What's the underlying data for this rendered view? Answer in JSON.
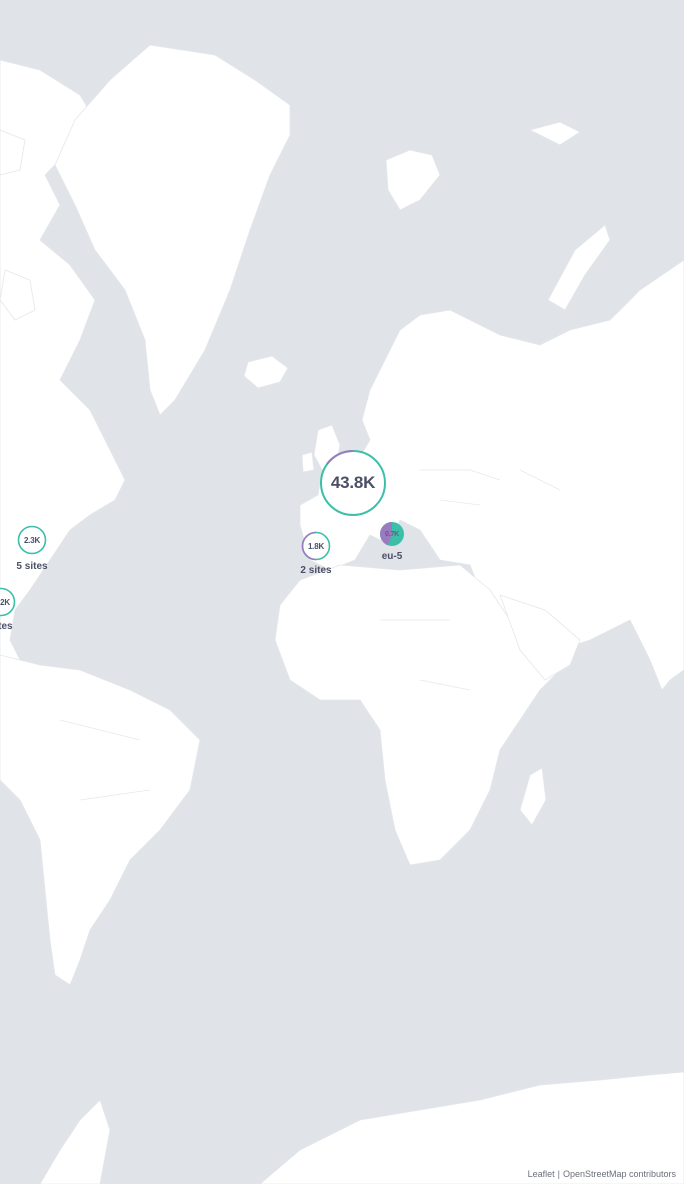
{
  "map": {
    "colors": {
      "ocean": "#e0e3e8",
      "land": "#ffffff",
      "ring_primary": "#3bbfa8",
      "ring_secondary": "#9a7bbf",
      "label_text": "#4a4f66"
    }
  },
  "clusters": {
    "europe_main": {
      "value": "43.8K",
      "primary_share": 0.8
    },
    "iberia": {
      "value": "1.8K",
      "label": "2 sites",
      "primary_share": 0.5
    },
    "us_east": {
      "value": "2.3K",
      "label": "5 sites",
      "primary_share": 0.95
    },
    "us_south": {
      "value": "2K",
      "label": "ites",
      "primary_share": 0.9
    },
    "italy": {
      "value": "0.7K",
      "label": "eu-5",
      "primary_share": 0.55
    }
  },
  "attribution": {
    "leaflet": "Leaflet",
    "separator": "|",
    "osm": "OpenStreetMap contributors"
  }
}
